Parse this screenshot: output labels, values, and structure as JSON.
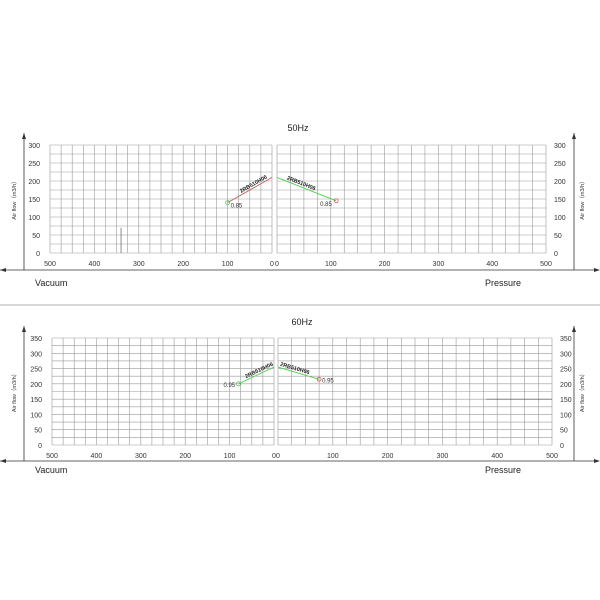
{
  "chart_data": [
    {
      "type": "line",
      "title": "50Hz",
      "ylabel": "Air flow（m3/h）",
      "left_label": "Vacuum",
      "right_label": "Pressure",
      "ylim": [
        0,
        300
      ],
      "yticks": [
        0,
        50,
        100,
        150,
        200,
        250,
        300
      ],
      "xlim_left": [
        500,
        0
      ],
      "xlim_right": [
        0,
        500
      ],
      "xticks_left": [
        500,
        400,
        300,
        200,
        100,
        0
      ],
      "xticks_right": [
        0,
        100,
        200,
        300,
        400,
        500
      ],
      "grid": true,
      "series": [
        {
          "name": "2RB510H06",
          "side": "vacuum",
          "x": [
            100,
            0
          ],
          "y": [
            140,
            210
          ],
          "end_label": "0.85",
          "color": "#c06060",
          "marker_color": "#44bb44"
        },
        {
          "name": "2RB510H06",
          "side": "pressure",
          "x": [
            0,
            110
          ],
          "y": [
            210,
            145
          ],
          "end_label": "0.85",
          "color": "#55cc55",
          "marker_color": "#cc4444"
        }
      ]
    },
    {
      "type": "line",
      "title": "60Hz",
      "ylabel": "Air flow（m3/h）",
      "left_label": "Vacuum",
      "right_label": "Pressure",
      "ylim": [
        0,
        350
      ],
      "yticks": [
        0,
        50,
        100,
        150,
        200,
        250,
        300,
        350
      ],
      "xlim_left": [
        500,
        0
      ],
      "xlim_right": [
        0,
        500
      ],
      "xticks_left": [
        500,
        400,
        300,
        200,
        100,
        0
      ],
      "xticks_right": [
        0,
        100,
        200,
        300,
        400,
        500
      ],
      "grid": true,
      "series": [
        {
          "name": "2RB510H06",
          "side": "vacuum",
          "x": [
            80,
            0
          ],
          "y": [
            200,
            255
          ],
          "end_label": "0.95",
          "color": "#55cc55",
          "marker_color": "#44bb44"
        },
        {
          "name": "2RB510H06",
          "side": "pressure",
          "x": [
            0,
            75
          ],
          "y": [
            255,
            215
          ],
          "end_label": "0.95",
          "color": "#55cc55",
          "marker_color": "#cc4444"
        }
      ]
    }
  ]
}
